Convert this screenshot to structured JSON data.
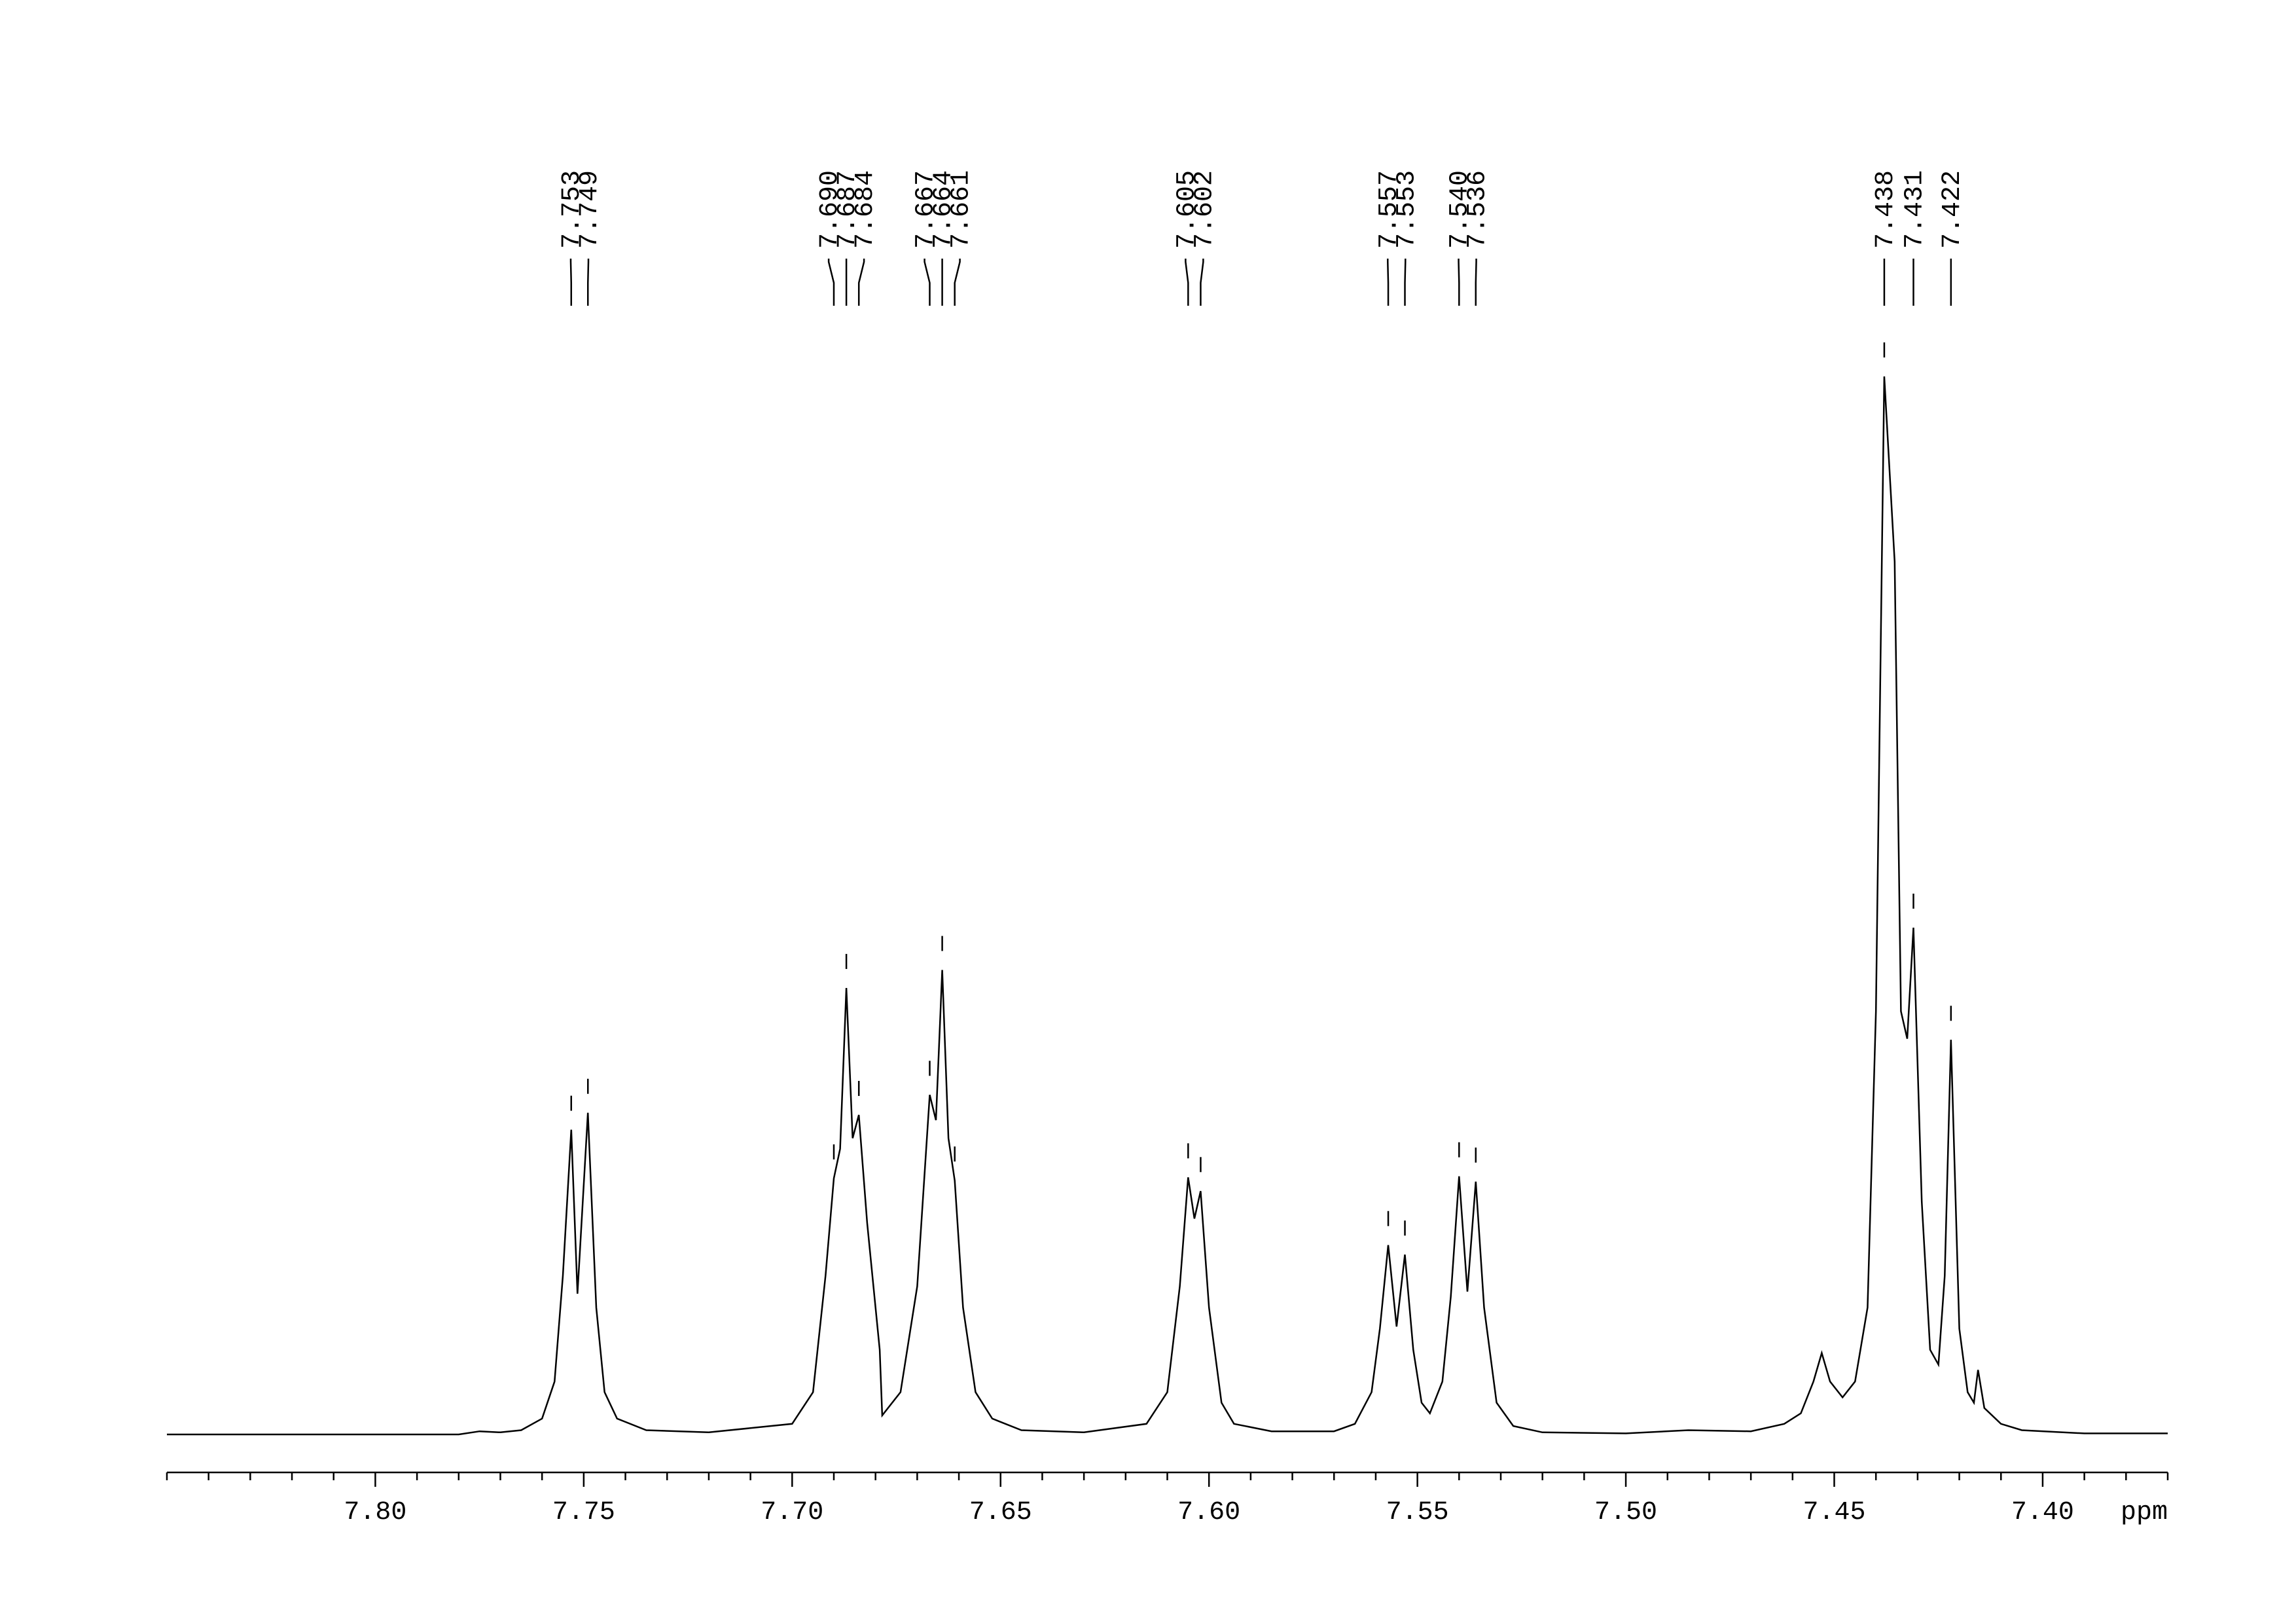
{
  "chart_data": {
    "type": "line",
    "xlabel": "ppm",
    "color": "#000000",
    "xlim": [
      7.85,
      7.37
    ],
    "ylim": [
      0,
      100
    ],
    "xticks": [
      {
        "value": 7.8,
        "label": "7.80"
      },
      7.75,
      {
        "value": 7.7,
        "label": "7.70"
      },
      7.65,
      {
        "value": 7.6,
        "label": "7.60"
      },
      7.55,
      {
        "value": 7.5,
        "label": "7.50"
      },
      7.45,
      {
        "value": 7.4,
        "label": "7.40"
      }
    ],
    "xminorticks": [
      7.85,
      7.84,
      7.83,
      7.82,
      7.81,
      7.79,
      7.78,
      7.77,
      7.76,
      7.74,
      7.73,
      7.72,
      7.71,
      7.69,
      7.68,
      7.67,
      7.66,
      7.64,
      7.63,
      7.62,
      7.61,
      7.59,
      7.58,
      7.57,
      7.56,
      7.54,
      7.53,
      7.52,
      7.51,
      7.49,
      7.48,
      7.47,
      7.46,
      7.44,
      7.43,
      7.42,
      7.41,
      7.39,
      7.38,
      7.37
    ],
    "peaks": {
      "positions": [
        7.753,
        7.749,
        {
          "value": 7.69,
          "label": "7.690"
        },
        7.687,
        7.684,
        7.667,
        7.664,
        7.661,
        7.605,
        7.602,
        7.557,
        7.553,
        {
          "value": 7.54,
          "label": "7.540"
        },
        7.536,
        7.438,
        7.431,
        7.422
      ],
      "heights": [
        28.8,
        30.4,
        24.2,
        42.2,
        30.2,
        32.1,
        43.9,
        24.0,
        24.3,
        23.0,
        17.9,
        17.0,
        24.4,
        23.9,
        100,
        47.9,
        37.3
      ]
    },
    "x": [
      7.85,
      7.78,
      7.775,
      7.77,
      7.765,
      7.76,
      7.757,
      7.755,
      7.753,
      7.7515,
      7.749,
      7.747,
      7.745,
      7.742,
      7.735,
      7.72,
      7.7,
      7.695,
      7.692,
      7.69,
      7.6885,
      7.687,
      7.6855,
      7.684,
      7.682,
      7.679,
      7.6784,
      7.674,
      7.67,
      7.667,
      7.6655,
      7.664,
      7.6625,
      7.661,
      7.659,
      7.656,
      7.652,
      7.645,
      7.63,
      7.615,
      7.61,
      7.607,
      7.605,
      7.6035,
      7.602,
      7.6,
      7.597,
      7.594,
      7.585,
      7.57,
      7.565,
      7.561,
      7.559,
      7.557,
      7.555,
      7.553,
      7.551,
      7.549,
      7.547,
      7.544,
      7.542,
      7.54,
      7.538,
      7.536,
      7.534,
      7.531,
      7.527,
      7.52,
      7.5,
      7.485,
      7.47,
      7.462,
      7.458,
      7.455,
      7.453,
      7.451,
      7.448,
      7.445,
      7.442,
      7.44,
      7.438,
      7.4355,
      7.434,
      7.4325,
      7.431,
      7.429,
      7.427,
      7.425,
      7.4235,
      7.422,
      7.42,
      7.418,
      7.4165,
      7.4155,
      7.414,
      7.41,
      7.405,
      7.39,
      7.37
    ],
    "values": [
      0,
      0,
      0.3,
      0.2,
      0.4,
      1.5,
      5,
      15,
      28.8,
      13.3,
      30.4,
      12,
      4,
      1.5,
      0.4,
      0.2,
      1,
      4,
      15,
      24.2,
      27,
      42.2,
      28,
      30.2,
      20,
      8,
      1.8,
      4,
      14,
      32.1,
      29.7,
      43.9,
      28,
      24.0,
      12,
      4,
      1.5,
      0.4,
      0.2,
      1,
      4,
      14,
      24.3,
      20.4,
      23.0,
      12,
      3,
      1,
      0.3,
      0.3,
      1,
      4,
      10,
      17.9,
      10.2,
      17.0,
      8,
      3,
      2.0,
      5,
      13,
      24.4,
      13.5,
      23.9,
      12,
      3,
      0.8,
      0.2,
      0.1,
      0.4,
      0.3,
      1,
      2,
      5,
      7.7,
      5,
      3.5,
      5,
      12,
      40,
      100,
      82.5,
      40,
      37.4,
      47.9,
      22,
      8,
      6.6,
      15,
      37.3,
      10,
      4,
      3,
      6.1,
      2.5,
      1,
      0.4,
      0.1,
      0.1
    ]
  }
}
